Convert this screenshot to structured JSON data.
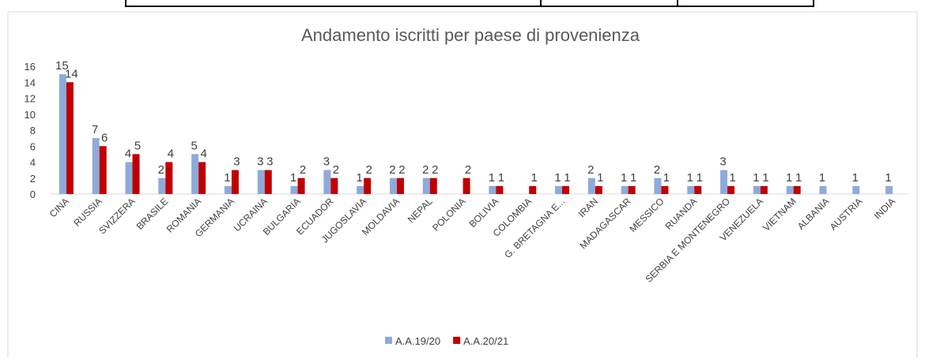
{
  "chart_data": {
    "type": "bar",
    "title": "Andamento iscritti per paese di provenienza",
    "categories": [
      "CINA",
      "RUSSIA",
      "SVIZZERA",
      "BRASILE",
      "ROMANIA",
      "GERMANIA",
      "UCRAINA",
      "BULGARIA",
      "ECUADOR",
      "JUGOSLAVIA",
      "MOLDAVIA",
      "NEPAL",
      "POLONIA",
      "BOLIVIA",
      "COLOMBIA",
      "G. BRETAGNA E...",
      "IRAN",
      "MADAGASCAR",
      "MESSICO",
      "RUANDA",
      "SERBIA E MONTENEGRO",
      "VENEZUELA",
      "VIETNAM",
      "ALBANIA",
      "AUSTRIA",
      "INDIA"
    ],
    "series": [
      {
        "name": "A.A.19/20",
        "color": "#8eaadb",
        "values": [
          15,
          7,
          4,
          2,
          5,
          1,
          3,
          1,
          3,
          1,
          2,
          2,
          null,
          1,
          null,
          1,
          2,
          1,
          2,
          1,
          3,
          1,
          1,
          1,
          1,
          1
        ]
      },
      {
        "name": "A.A.20/21",
        "color": "#c00000",
        "values": [
          14,
          6,
          5,
          4,
          4,
          3,
          3,
          2,
          2,
          2,
          2,
          2,
          2,
          1,
          1,
          1,
          1,
          1,
          1,
          1,
          1,
          1,
          1,
          null,
          null,
          null
        ]
      }
    ],
    "ylim": [
      0,
      16
    ],
    "yticks": [
      0,
      2,
      4,
      6,
      8,
      10,
      12,
      14,
      16
    ],
    "grid": false,
    "legend": "bottom"
  }
}
